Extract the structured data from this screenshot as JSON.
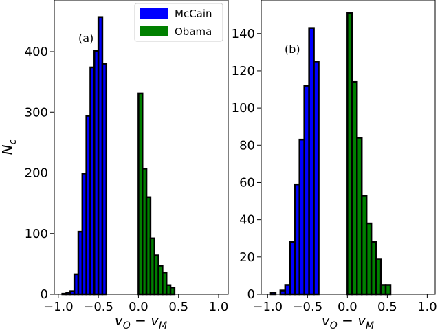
{
  "chart_data": [
    {
      "type": "bar",
      "panel_label": "(a)",
      "xlabel": "v_O − v_M",
      "ylabel": "N_c",
      "xlim": [
        -1.05,
        1.12
      ],
      "ylim": [
        0,
        485
      ],
      "xticks": [
        -1.0,
        -0.5,
        0.0,
        0.5,
        1.0
      ],
      "xtick_labels": [
        "−1.0",
        "−0.5",
        "0.0",
        "0.5",
        "1.0"
      ],
      "yticks": [
        0,
        100,
        200,
        300,
        400
      ],
      "yticks_labels": [
        "0",
        "100",
        "200",
        "300",
        "400"
      ],
      "bin_width": 0.05,
      "series": [
        {
          "name": "McCain",
          "color": "#0000ff",
          "bins": [
            {
              "x0": -0.95,
              "x1": -0.9,
              "count": 1
            },
            {
              "x0": -0.9,
              "x1": -0.85,
              "count": 3
            },
            {
              "x0": -0.85,
              "x1": -0.8,
              "count": 5
            },
            {
              "x0": -0.8,
              "x1": -0.75,
              "count": 33
            },
            {
              "x0": -0.75,
              "x1": -0.7,
              "count": 103
            },
            {
              "x0": -0.7,
              "x1": -0.65,
              "count": 199
            },
            {
              "x0": -0.65,
              "x1": -0.6,
              "count": 294
            },
            {
              "x0": -0.6,
              "x1": -0.55,
              "count": 374
            },
            {
              "x0": -0.55,
              "x1": -0.5,
              "count": 401
            },
            {
              "x0": -0.5,
              "x1": -0.45,
              "count": 457
            },
            {
              "x0": -0.45,
              "x1": -0.4,
              "count": 380
            }
          ]
        },
        {
          "name": "Obama",
          "color": "#008000",
          "bins": [
            {
              "x0": 0.0,
              "x1": 0.05,
              "count": 331
            },
            {
              "x0": 0.05,
              "x1": 0.1,
              "count": 207
            },
            {
              "x0": 0.1,
              "x1": 0.15,
              "count": 160
            },
            {
              "x0": 0.15,
              "x1": 0.2,
              "count": 92
            },
            {
              "x0": 0.2,
              "x1": 0.25,
              "count": 64
            },
            {
              "x0": 0.25,
              "x1": 0.3,
              "count": 47
            },
            {
              "x0": 0.3,
              "x1": 0.35,
              "count": 36
            },
            {
              "x0": 0.35,
              "x1": 0.4,
              "count": 15
            },
            {
              "x0": 0.4,
              "x1": 0.45,
              "count": 11
            }
          ]
        }
      ],
      "legend": {
        "position": "upper right",
        "entries": [
          {
            "label": "McCain",
            "color": "#0000ff"
          },
          {
            "label": "Obama",
            "color": "#008000"
          }
        ]
      }
    },
    {
      "type": "bar",
      "panel_label": "(b)",
      "xlabel": "v_O − v_M",
      "ylabel": "",
      "xlim": [
        -1.08,
        1.1
      ],
      "ylim": [
        0,
        158
      ],
      "xticks": [
        -1.0,
        -0.5,
        0.0,
        0.5,
        1.0
      ],
      "xtick_labels": [
        "−1.0",
        "−0.5",
        "0.0",
        "0.5",
        "1.0"
      ],
      "yticks": [
        0,
        20,
        40,
        60,
        80,
        100,
        120,
        140
      ],
      "yticks_labels": [
        "0",
        "20",
        "40",
        "60",
        "80",
        "100",
        "120",
        "140"
      ],
      "bin_width": 0.06,
      "series": [
        {
          "name": "McCain",
          "color": "#0000ff",
          "bins": [
            {
              "x0": -0.96,
              "x1": -0.9,
              "count": 1
            },
            {
              "x0": -0.9,
              "x1": -0.84,
              "count": 0
            },
            {
              "x0": -0.84,
              "x1": -0.78,
              "count": 2
            },
            {
              "x0": -0.78,
              "x1": -0.72,
              "count": 5
            },
            {
              "x0": -0.72,
              "x1": -0.66,
              "count": 28
            },
            {
              "x0": -0.66,
              "x1": -0.6,
              "count": 59
            },
            {
              "x0": -0.6,
              "x1": -0.54,
              "count": 83
            },
            {
              "x0": -0.54,
              "x1": -0.48,
              "count": 112
            },
            {
              "x0": -0.48,
              "x1": -0.42,
              "count": 143
            },
            {
              "x0": -0.42,
              "x1": -0.36,
              "count": 125
            }
          ]
        },
        {
          "name": "Obama",
          "color": "#008000",
          "bins": [
            {
              "x0": 0.0,
              "x1": 0.06,
              "count": 151
            },
            {
              "x0": 0.06,
              "x1": 0.12,
              "count": 114
            },
            {
              "x0": 0.12,
              "x1": 0.18,
              "count": 84
            },
            {
              "x0": 0.18,
              "x1": 0.24,
              "count": 53
            },
            {
              "x0": 0.24,
              "x1": 0.3,
              "count": 38
            },
            {
              "x0": 0.3,
              "x1": 0.36,
              "count": 28
            },
            {
              "x0": 0.36,
              "x1": 0.42,
              "count": 19
            },
            {
              "x0": 0.42,
              "x1": 0.48,
              "count": 5
            },
            {
              "x0": 0.48,
              "x1": 0.54,
              "count": 5
            }
          ]
        }
      ]
    }
  ]
}
